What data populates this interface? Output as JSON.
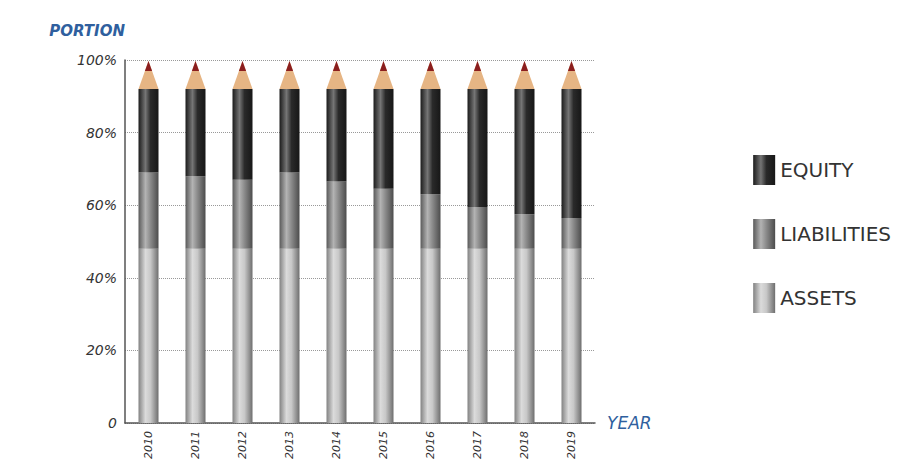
{
  "chart_data": {
    "type": "bar",
    "stacked": true,
    "x_label": "YEAR",
    "y_label": "PORTION",
    "categories": [
      "2010",
      "2011",
      "2012",
      "2013",
      "2014",
      "2015",
      "2016",
      "2017",
      "2018",
      "2019"
    ],
    "series": [
      {
        "name": "ASSETS",
        "color": "#c8c8c8",
        "values": [
          48,
          48,
          48,
          48,
          48,
          48,
          48,
          48,
          48,
          48
        ]
      },
      {
        "name": "LIABILITIES",
        "color": "#8a8a8a",
        "values": [
          21,
          20,
          19,
          21,
          18.5,
          16.5,
          15,
          11.5,
          9.5,
          8.5
        ]
      },
      {
        "name": "EQUITY",
        "color": "#2a2a2a",
        "values": [
          23,
          24,
          25,
          23,
          25.5,
          27.5,
          29,
          32.5,
          34.5,
          35.5
        ]
      }
    ],
    "ylim": [
      0,
      100
    ],
    "yticks": [
      0,
      {
        "value": 20,
        "label": "20%"
      },
      {
        "value": 40,
        "label": "40%"
      },
      {
        "value": 60,
        "label": "60%"
      },
      {
        "value": 80,
        "label": "80%"
      },
      {
        "value": 100,
        "label": "100%"
      }
    ],
    "grid": true,
    "legend": "right"
  }
}
